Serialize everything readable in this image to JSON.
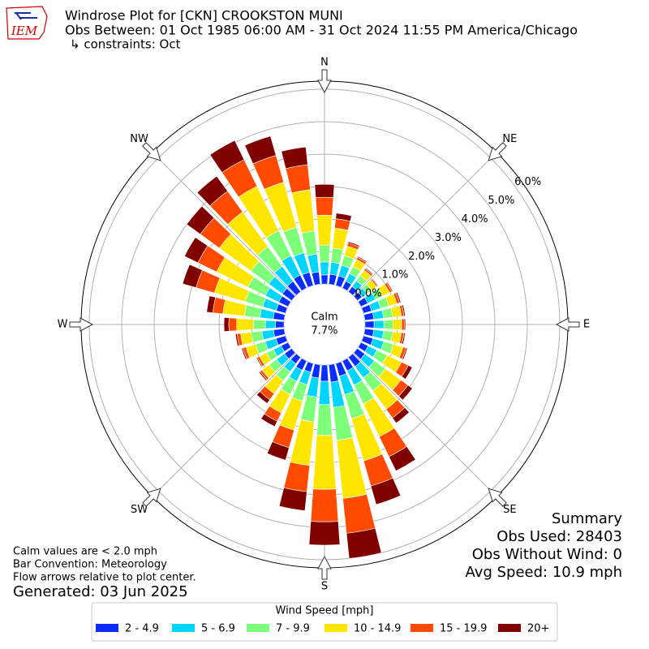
{
  "chart_data": {
    "type": "windrose",
    "logo_text": "IEM",
    "title": "Windrose Plot for [CKN] CROOKSTON MUNI",
    "subtitle": "Obs Between: 01 Oct 1985 06:00 AM - 31 Oct 2024 11:55 PM America/Chicago",
    "constraints": "↳ constraints: Oct",
    "calm_label": "Calm",
    "calm_value": "7.7%",
    "x": [
      0,
      10,
      20,
      30,
      40,
      50,
      60,
      70,
      80,
      90,
      100,
      110,
      120,
      130,
      140,
      150,
      160,
      170,
      180,
      190,
      200,
      210,
      220,
      230,
      240,
      250,
      260,
      270,
      280,
      290,
      300,
      310,
      320,
      330,
      340,
      350
    ],
    "xlim": [
      0,
      360
    ],
    "xticks": [
      {
        "value": 0,
        "label": "N"
      },
      {
        "value": 45,
        "label": "NE"
      },
      {
        "value": 90,
        "label": "E"
      },
      {
        "value": 135,
        "label": "SE"
      },
      {
        "value": 180,
        "label": "S"
      },
      {
        "value": 225,
        "label": "SW"
      },
      {
        "value": 270,
        "label": "W"
      },
      {
        "value": 315,
        "label": "NW"
      }
    ],
    "ylim": [
      0,
      6.25
    ],
    "yticks": [
      {
        "value": 0,
        "label": "0.0%"
      },
      {
        "value": 1,
        "label": "1.0%"
      },
      {
        "value": 2,
        "label": "2.0%"
      },
      {
        "value": 3,
        "label": "3.0%"
      },
      {
        "value": 4,
        "label": "4.0%"
      },
      {
        "value": 5,
        "label": "5.0%"
      },
      {
        "value": 6,
        "label": "6.0%"
      }
    ],
    "grid": true,
    "legend_title": "Wind Speed [mph]",
    "series": [
      {
        "name": "2 - 4.9",
        "color": "#0a2cff",
        "values": [
          0.28,
          0.31,
          0.31,
          0.24,
          0.2,
          0.18,
          0.24,
          0.26,
          0.28,
          0.28,
          0.28,
          0.31,
          0.25,
          0.29,
          0.35,
          0.34,
          0.41,
          0.54,
          0.5,
          0.41,
          0.28,
          0.32,
          0.25,
          0.28,
          0.24,
          0.31,
          0.33,
          0.26,
          0.34,
          0.3,
          0.32,
          0.36,
          0.4,
          0.45,
          0.43,
          0.38
        ]
      },
      {
        "name": "5 - 6.9",
        "color": "#00d5ff",
        "values": [
          0.4,
          0.37,
          0.34,
          0.26,
          0.22,
          0.19,
          0.26,
          0.29,
          0.3,
          0.3,
          0.3,
          0.34,
          0.3,
          0.36,
          0.43,
          0.49,
          0.59,
          0.78,
          0.72,
          0.59,
          0.4,
          0.38,
          0.3,
          0.3,
          0.26,
          0.34,
          0.36,
          0.31,
          0.41,
          0.43,
          0.46,
          0.52,
          0.57,
          0.66,
          0.62,
          0.55
        ]
      },
      {
        "name": "7 - 9.9",
        "color": "#7dff7a",
        "values": [
          0.52,
          0.44,
          0.31,
          0.24,
          0.2,
          0.18,
          0.24,
          0.26,
          0.28,
          0.28,
          0.28,
          0.31,
          0.35,
          0.42,
          0.5,
          0.64,
          0.77,
          1.02,
          0.94,
          0.77,
          0.53,
          0.45,
          0.35,
          0.28,
          0.24,
          0.31,
          0.33,
          0.37,
          0.48,
          0.56,
          0.6,
          0.68,
          0.75,
          0.86,
          0.82,
          0.72
        ]
      },
      {
        "name": "10 - 14.9",
        "color": "#ffe600",
        "values": [
          0.92,
          0.62,
          0.31,
          0.24,
          0.2,
          0.18,
          0.24,
          0.26,
          0.27,
          0.27,
          0.27,
          0.31,
          0.49,
          0.59,
          0.7,
          1.13,
          1.35,
          1.8,
          1.67,
          1.35,
          0.93,
          0.63,
          0.49,
          0.27,
          0.24,
          0.31,
          0.33,
          0.52,
          0.67,
          0.99,
          1.07,
          1.2,
          1.32,
          1.52,
          1.44,
          1.28
        ]
      },
      {
        "name": "15 - 19.9",
        "color": "#ff4a00",
        "values": [
          0.55,
          0.29,
          0.1,
          0.08,
          0.06,
          0.05,
          0.08,
          0.09,
          0.08,
          0.08,
          0.08,
          0.1,
          0.23,
          0.27,
          0.33,
          0.68,
          0.81,
          1.08,
          1.0,
          0.81,
          0.56,
          0.29,
          0.23,
          0.08,
          0.08,
          0.1,
          0.11,
          0.24,
          0.31,
          0.59,
          0.64,
          0.72,
          0.79,
          0.91,
          0.86,
          0.77
        ]
      },
      {
        "name": "20+",
        "color": "#800000",
        "values": [
          0.4,
          0.17,
          0.04,
          0.03,
          0.03,
          0.02,
          0.03,
          0.04,
          0.04,
          0.04,
          0.04,
          0.04,
          0.14,
          0.17,
          0.2,
          0.49,
          0.59,
          0.78,
          0.72,
          0.59,
          0.4,
          0.18,
          0.14,
          0.04,
          0.03,
          0.04,
          0.05,
          0.15,
          0.19,
          0.43,
          0.46,
          0.52,
          0.57,
          0.66,
          0.62,
          0.55
        ]
      }
    ],
    "notes": [
      "Calm values are < 2.0 mph",
      "Bar Convention: Meteorology",
      "Flow arrows relative to plot center."
    ],
    "generated": "Generated: 03 Jun 2025",
    "summary": [
      "Summary",
      "Obs Used: 28403",
      "Obs Without Wind: 0",
      "Avg Speed: 10.9 mph"
    ]
  }
}
